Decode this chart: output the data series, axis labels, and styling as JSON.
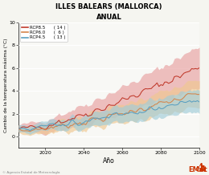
{
  "title": "ILLES BALEARS (MALLORCA)",
  "subtitle": "ANUAL",
  "xlabel": "Año",
  "ylabel": "Cambio de la temperatura máxima (°C)",
  "ylim": [
    -1,
    10
  ],
  "xlim": [
    2006,
    2100
  ],
  "xticks": [
    2020,
    2040,
    2060,
    2080,
    2100
  ],
  "yticks": [
    0,
    2,
    4,
    6,
    8,
    10
  ],
  "rcp85_color": "#c0392b",
  "rcp60_color": "#d4844a",
  "rcp45_color": "#5a9fc0",
  "rcp85_fill": "#e8a0a0",
  "rcp60_fill": "#f0c890",
  "rcp45_fill": "#a0ccd8",
  "legend_entries": [
    "RCP8.5",
    "RCP6.0",
    "RCP4.5"
  ],
  "legend_counts": [
    "( 14 )",
    "(  6 )",
    "( 13 )"
  ],
  "plot_bg": "#f5f5f0",
  "fig_bg": "#f5f5f0",
  "seed": 12
}
